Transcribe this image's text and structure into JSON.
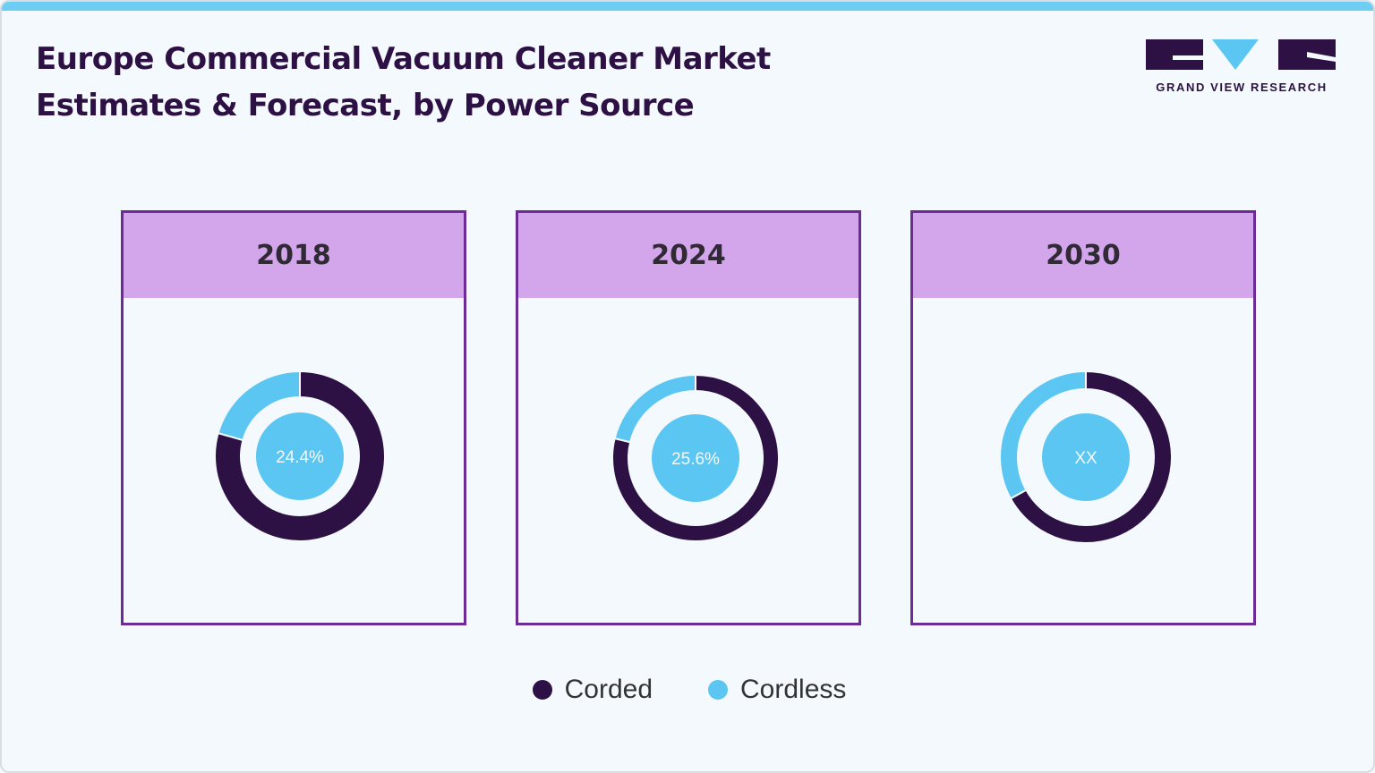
{
  "title": {
    "line1": "Europe Commercial Vacuum Cleaner Market",
    "line2": "Estimates & Forecast, by Power Source"
  },
  "logo": {
    "text": "GRAND VIEW RESEARCH"
  },
  "colors": {
    "corded": "#2d1044",
    "cordless": "#5bc6f1",
    "header": "#d3a6ec",
    "border": "#6e2b96"
  },
  "chart_data": [
    {
      "type": "pie",
      "title": "2018",
      "categories": [
        "Corded",
        "Cordless"
      ],
      "values": [
        79.4,
        20.6
      ],
      "center_label": "24.4%"
    },
    {
      "type": "pie",
      "title": "2024",
      "categories": [
        "Corded",
        "Cordless"
      ],
      "values": [
        78.8,
        21.2
      ],
      "center_label": "25.6%"
    },
    {
      "type": "pie",
      "title": "2030",
      "categories": [
        "Corded",
        "Cordless"
      ],
      "values": [
        67.0,
        33.0
      ],
      "center_label": "XX"
    }
  ],
  "legend": [
    {
      "label": "Corded",
      "color": "#2d1044"
    },
    {
      "label": "Cordless",
      "color": "#5bc6f1"
    }
  ]
}
